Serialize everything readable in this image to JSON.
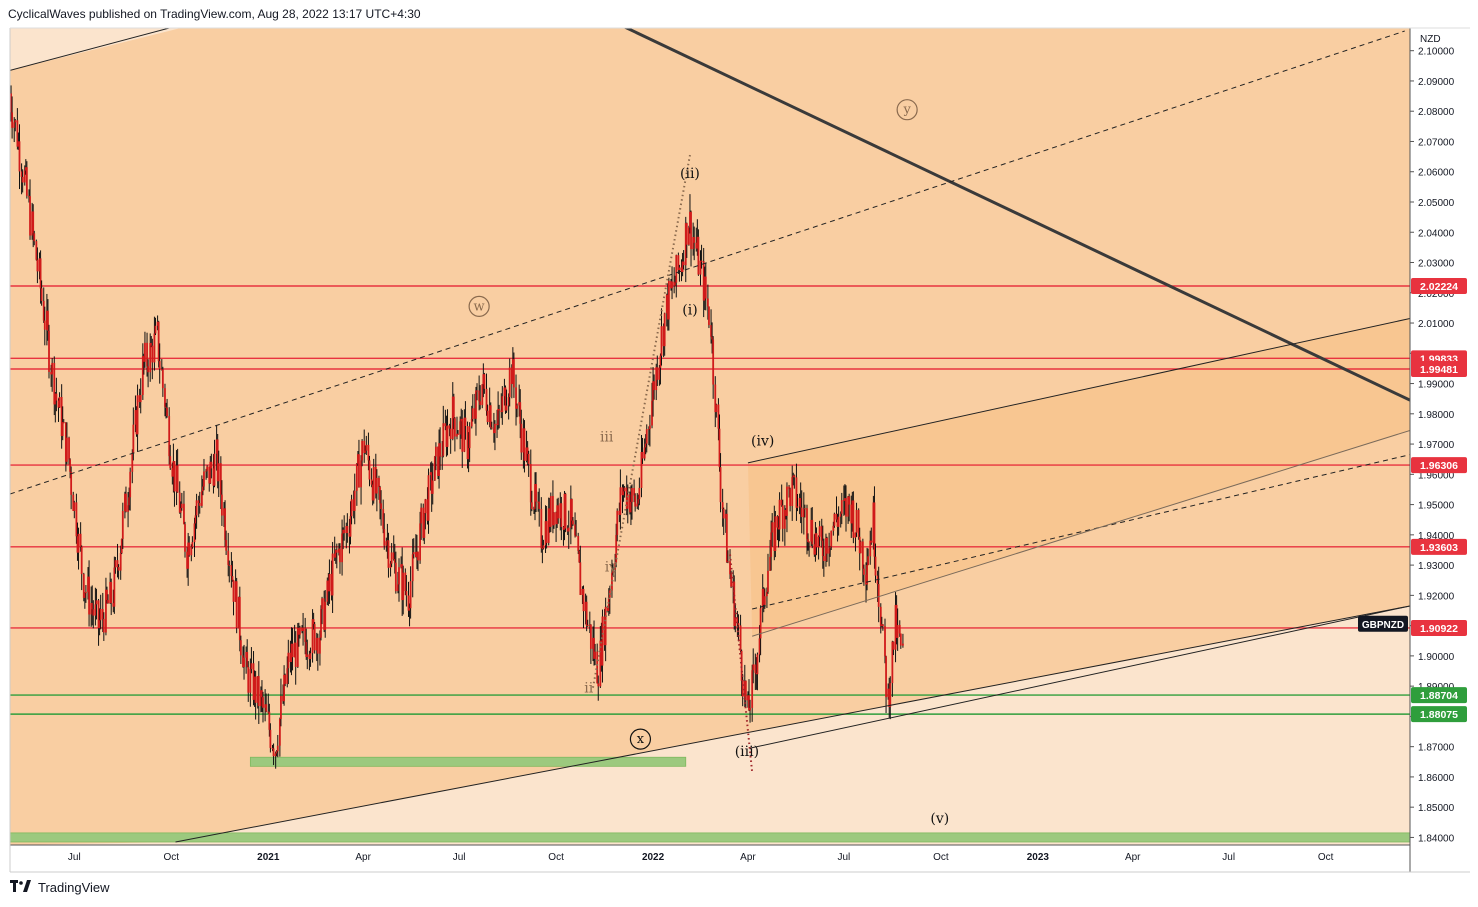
{
  "header": {
    "published": "CyclicalWaves published on TradingView.com, Aug 28, 2022 13:17 UTC+4:30"
  },
  "footer": {
    "brand": "TradingView",
    "logo_icon": "tradingview-logo-icon"
  },
  "colors": {
    "panel_bg": "#f9cea2",
    "lower_bg": "#fbe4cd",
    "upper_left_bg": "#fbe4cd",
    "channel_fill": "#f8c084",
    "resistance": "#e8333f",
    "support": "#2f9e3c",
    "green_zone": "#9cc97e",
    "candle": "#d01b1b",
    "wick": "#111111"
  },
  "chart_data": {
    "type": "candlestick",
    "symbol": "GBPNZD",
    "currency": "NZD",
    "x_axis": {
      "range": [
        "2020-05-01",
        "2023-12-20"
      ],
      "ticks": [
        {
          "label": "Jul",
          "date": "2020-07-01",
          "bold": false
        },
        {
          "label": "Oct",
          "date": "2020-10-01",
          "bold": false
        },
        {
          "label": "2021",
          "date": "2021-01-01",
          "bold": true
        },
        {
          "label": "Apr",
          "date": "2021-04-01",
          "bold": false
        },
        {
          "label": "Jul",
          "date": "2021-07-01",
          "bold": false
        },
        {
          "label": "Oct",
          "date": "2021-10-01",
          "bold": false
        },
        {
          "label": "2022",
          "date": "2022-01-01",
          "bold": true
        },
        {
          "label": "Apr",
          "date": "2022-04-01",
          "bold": false
        },
        {
          "label": "Jul",
          "date": "2022-07-01",
          "bold": false
        },
        {
          "label": "Oct",
          "date": "2022-10-01",
          "bold": false
        },
        {
          "label": "2023",
          "date": "2023-01-01",
          "bold": true
        },
        {
          "label": "Apr",
          "date": "2023-04-01",
          "bold": false
        },
        {
          "label": "Jul",
          "date": "2023-07-01",
          "bold": false
        },
        {
          "label": "Oct",
          "date": "2023-10-01",
          "bold": false
        }
      ]
    },
    "y_axis": {
      "range": [
        1.8375,
        2.1075
      ],
      "ticks": [
        "2.10000",
        "2.09000",
        "2.08000",
        "2.07000",
        "2.06000",
        "2.05000",
        "2.04000",
        "2.03000",
        "2.02000",
        "2.01000",
        "2.00000",
        "1.99000",
        "1.98000",
        "1.97000",
        "1.96000",
        "1.95000",
        "1.94000",
        "1.93000",
        "1.92000",
        "1.91000",
        "1.90000",
        "1.89000",
        "1.88000",
        "1.87000",
        "1.86000",
        "1.85000",
        "1.84000"
      ]
    },
    "price_levels": [
      {
        "label": "2.02224",
        "value": 2.02224,
        "kind": "resistance"
      },
      {
        "label": "1.99833",
        "value": 1.99833,
        "kind": "resistance"
      },
      {
        "label": "1.99481",
        "value": 1.99481,
        "kind": "resistance"
      },
      {
        "label": "1.96306",
        "value": 1.96306,
        "kind": "resistance"
      },
      {
        "label": "1.93603",
        "value": 1.93603,
        "kind": "resistance"
      },
      {
        "label": "1.90922",
        "value": 1.90922,
        "kind": "resistance"
      },
      {
        "label": "1.88704",
        "value": 1.88704,
        "kind": "support"
      },
      {
        "label": "1.88075",
        "value": 1.88075,
        "kind": "support"
      }
    ],
    "symbol_tag": {
      "label": "GBPNZD",
      "value": 1.9106
    },
    "zones": [
      {
        "name": "green-demand-zone",
        "start": "2020-12-15",
        "end": "2022-02-01",
        "top": 1.8665,
        "bottom": 1.8635
      },
      {
        "name": "bottom-green-strip",
        "start": "2020-05-01",
        "end": "2023-12-20",
        "top": 1.8415,
        "bottom": 1.8385
      }
    ],
    "trendlines": [
      {
        "name": "upper-left-trendline",
        "from": [
          "2020-05-01",
          2.0935
        ],
        "to": [
          "2020-10-10",
          2.1085
        ],
        "style": "solid",
        "weight": 1
      },
      {
        "name": "major-descending-trendline",
        "from": [
          "2021-12-01",
          2.1085
        ],
        "to": [
          "2023-12-20",
          1.9845
        ],
        "style": "solid",
        "weight": 3
      },
      {
        "name": "long-dashed-channel-upper",
        "from": [
          "2020-05-01",
          1.9535
        ],
        "to": [
          "2023-12-15",
          2.1065
        ],
        "style": "dashed",
        "weight": 1
      },
      {
        "name": "long-rising-support",
        "from": [
          "2020-10-05",
          1.8385
        ],
        "to": [
          "2023-12-20",
          1.9165
        ],
        "style": "solid",
        "weight": 1
      },
      {
        "name": "channel-upper-line",
        "from": [
          "2022-04-01",
          1.9638
        ],
        "to": [
          "2023-12-20",
          2.0115
        ],
        "style": "solid",
        "weight": 1
      },
      {
        "name": "channel-mid-dashed",
        "from": [
          "2022-04-05",
          1.9155
        ],
        "to": [
          "2023-12-20",
          1.9665
        ],
        "style": "dashed",
        "weight": 1
      },
      {
        "name": "channel-inner-line",
        "from": [
          "2022-04-05",
          1.9065
        ],
        "to": [
          "2023-12-20",
          1.9745
        ],
        "style": "solid",
        "weight": 1
      },
      {
        "name": "channel-lower-line",
        "from": [
          "2022-04-03",
          1.8695
        ],
        "to": [
          "2023-12-20",
          1.9165
        ],
        "style": "solid",
        "weight": 1
      },
      {
        "name": "dotted-impulse-line",
        "from": [
          "2021-11-05",
          1.8895
        ],
        "to": [
          "2022-02-05",
          2.0655
        ],
        "style": "dotted",
        "weight": 2
      },
      {
        "name": "dotted-decline-line",
        "from": [
          "2022-03-15",
          1.9335
        ],
        "to": [
          "2022-04-05",
          1.8615
        ],
        "style": "dotted",
        "weight": 2
      }
    ],
    "wave_labels": [
      {
        "text": "w",
        "date": "2021-07-20",
        "price": 2.0155,
        "circled": true,
        "color": "#8a6a4e"
      },
      {
        "text": "x",
        "date": "2021-12-20",
        "price": 1.8725,
        "circled": true,
        "color": "#111111"
      },
      {
        "text": "y",
        "date": "2022-08-30",
        "price": 2.0805,
        "circled": true,
        "color": "#8a6a4e"
      },
      {
        "text": "(ii)",
        "date": "2022-02-05",
        "price": 2.0595,
        "circled": false,
        "color": "#111111"
      },
      {
        "text": "(i)",
        "date": "2022-02-05",
        "price": 2.0145,
        "circled": false,
        "color": "#111111"
      },
      {
        "text": "(iv)",
        "date": "2022-04-15",
        "price": 1.9712,
        "circled": false,
        "color": "#111111"
      },
      {
        "text": "(iii)",
        "date": "2022-03-31",
        "price": 1.8685,
        "circled": false,
        "color": "#111111"
      },
      {
        "text": "(v)",
        "date": "2022-09-30",
        "price": 1.8465,
        "circled": false,
        "color": "#111111"
      },
      {
        "text": "iii",
        "date": "2021-11-18",
        "price": 1.9725,
        "circled": false,
        "color": "#8a6a4e"
      },
      {
        "text": "iv",
        "date": "2021-11-22",
        "price": 1.9295,
        "circled": false,
        "color": "#8a6a4e"
      },
      {
        "text": "ii",
        "date": "2021-11-01",
        "price": 1.8895,
        "circled": false,
        "color": "#8a6a4e"
      }
    ],
    "price_path": [
      [
        "2020-05-01",
        2.086
      ],
      [
        "2020-05-15",
        2.058
      ],
      [
        "2020-05-29",
        2.025
      ],
      [
        "2020-06-12",
        1.99
      ],
      [
        "2020-06-26",
        1.965
      ],
      [
        "2020-07-10",
        1.925
      ],
      [
        "2020-07-24",
        1.91
      ],
      [
        "2020-08-07",
        1.92
      ],
      [
        "2020-08-21",
        1.955
      ],
      [
        "2020-09-04",
        1.995
      ],
      [
        "2020-09-18",
        2.005
      ],
      [
        "2020-10-02",
        1.965
      ],
      [
        "2020-10-16",
        1.935
      ],
      [
        "2020-10-30",
        1.955
      ],
      [
        "2020-11-13",
        1.965
      ],
      [
        "2020-11-27",
        1.93
      ],
      [
        "2020-12-11",
        1.895
      ],
      [
        "2020-12-25",
        1.885
      ],
      [
        "2021-01-08",
        1.87
      ],
      [
        "2021-01-22",
        1.9
      ],
      [
        "2021-02-05",
        1.905
      ],
      [
        "2021-02-19",
        1.908
      ],
      [
        "2021-03-05",
        1.93
      ],
      [
        "2021-03-19",
        1.945
      ],
      [
        "2021-04-02",
        1.97
      ],
      [
        "2021-04-16",
        1.95
      ],
      [
        "2021-04-30",
        1.93
      ],
      [
        "2021-05-14",
        1.92
      ],
      [
        "2021-05-28",
        1.945
      ],
      [
        "2021-06-11",
        1.965
      ],
      [
        "2021-06-25",
        1.98
      ],
      [
        "2021-07-09",
        1.97
      ],
      [
        "2021-07-23",
        1.99
      ],
      [
        "2021-08-06",
        1.975
      ],
      [
        "2021-08-20",
        1.995
      ],
      [
        "2021-09-03",
        1.965
      ],
      [
        "2021-09-17",
        1.94
      ],
      [
        "2021-10-01",
        1.95
      ],
      [
        "2021-10-15",
        1.945
      ],
      [
        "2021-10-29",
        1.915
      ],
      [
        "2021-11-10",
        1.895
      ],
      [
        "2021-11-20",
        1.92
      ],
      [
        "2021-12-03",
        1.955
      ],
      [
        "2021-12-17",
        1.95
      ],
      [
        "2021-12-31",
        1.985
      ],
      [
        "2022-01-14",
        2.015
      ],
      [
        "2022-01-28",
        2.03
      ],
      [
        "2022-02-04",
        2.045
      ],
      [
        "2022-02-14",
        2.03
      ],
      [
        "2022-02-25",
        2.01
      ],
      [
        "2022-03-07",
        1.955
      ],
      [
        "2022-03-14",
        1.93
      ],
      [
        "2022-03-24",
        1.905
      ],
      [
        "2022-04-01",
        1.88
      ],
      [
        "2022-04-08",
        1.895
      ],
      [
        "2022-04-18",
        1.925
      ],
      [
        "2022-04-29",
        1.945
      ],
      [
        "2022-05-13",
        1.955
      ],
      [
        "2022-05-27",
        1.945
      ],
      [
        "2022-06-10",
        1.935
      ],
      [
        "2022-06-24",
        1.945
      ],
      [
        "2022-07-08",
        1.95
      ],
      [
        "2022-07-22",
        1.93
      ],
      [
        "2022-07-29",
        1.945
      ],
      [
        "2022-08-05",
        1.915
      ],
      [
        "2022-08-12",
        1.885
      ],
      [
        "2022-08-19",
        1.91
      ],
      [
        "2022-08-26",
        1.9
      ]
    ]
  }
}
